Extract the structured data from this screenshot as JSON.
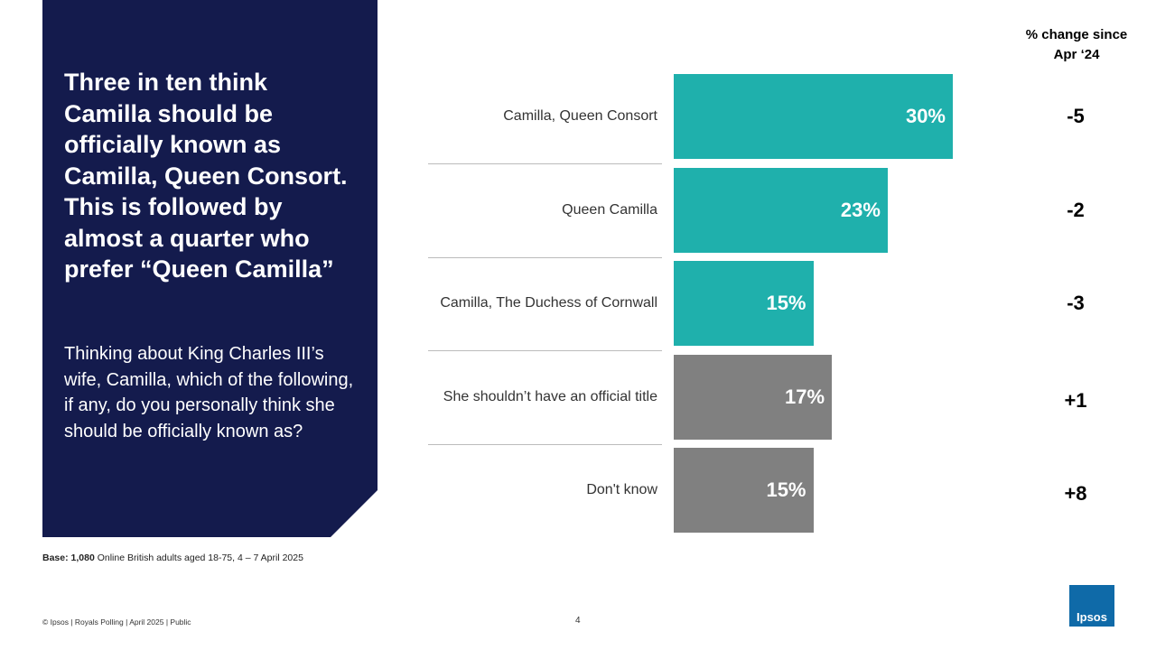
{
  "panel": {
    "title": "Three in ten think Camilla should be officially known as Camilla, Queen Consort. This is followed by almost a quarter who prefer “Queen Camilla”",
    "question": "Thinking about King Charles III’s wife, Camilla, which of the following, if any, do you personally think she should be officially known as?"
  },
  "chart_data": {
    "type": "bar",
    "orientation": "horizontal",
    "categories": [
      "Camilla, Queen Consort",
      "Queen Camilla",
      "Camilla, The Duchess of Cornwall",
      "She shouldn’t have an official title",
      "Don't know"
    ],
    "values": [
      30,
      23,
      15,
      17,
      15
    ],
    "value_labels": [
      "30%",
      "23%",
      "15%",
      "17%",
      "15%"
    ],
    "colors": [
      "#1fb0ac",
      "#1fb0ac",
      "#1fb0ac",
      "#808080",
      "#808080"
    ],
    "change": {
      "header": "% change since Apr ‘24",
      "values": [
        -5,
        -2,
        -3,
        1,
        8
      ],
      "value_labels": [
        "-5",
        "-2",
        "-3",
        "+1",
        "+8"
      ]
    }
  },
  "footer": {
    "base_label": "Base: 1,080",
    "base_text": "Online British adults aged 18-75, 4 – 7 April 2025",
    "copyright": "© Ipsos | Royals Polling | April 2025 | Public",
    "page": "4",
    "logo": "Ipsos"
  }
}
